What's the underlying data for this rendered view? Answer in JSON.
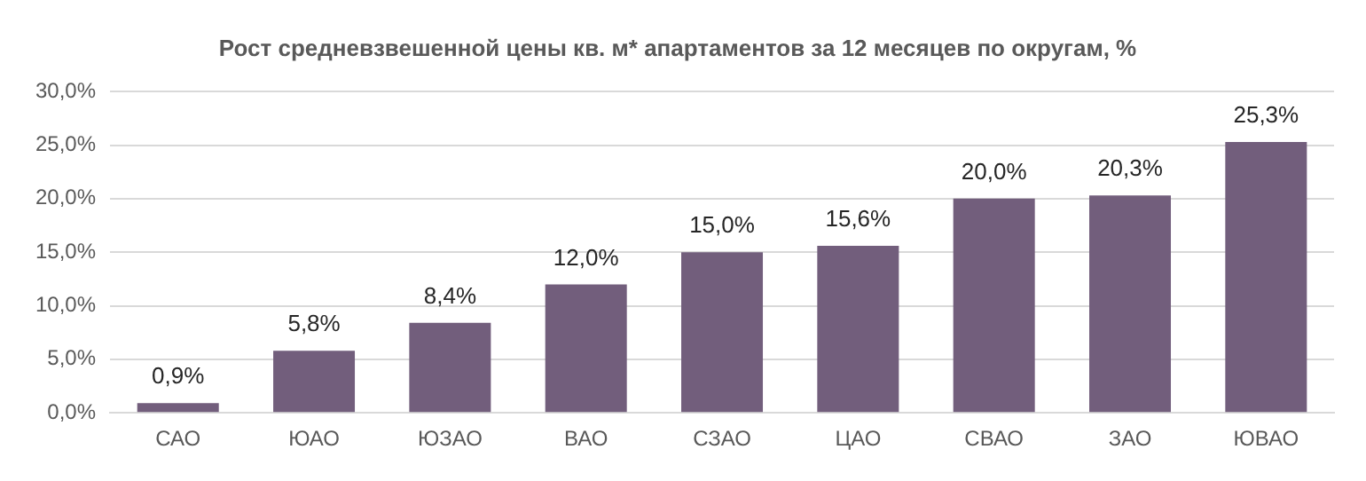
{
  "chart_data": {
    "type": "bar",
    "title": "Рост средневзвешенной цены кв. м* апартаментов за 12 месяцев по округам, %",
    "categories": [
      "САО",
      "ЮАО",
      "ЮЗАО",
      "ВАО",
      "СЗАО",
      "ЦАО",
      "СВАО",
      "ЗАО",
      "ЮВАО"
    ],
    "values": [
      0.9,
      5.8,
      8.4,
      12.0,
      15.0,
      15.6,
      20.0,
      20.3,
      25.3
    ],
    "value_labels": [
      "0,9%",
      "5,8%",
      "8,4%",
      "12,0%",
      "15,0%",
      "15,6%",
      "20,0%",
      "20,3%",
      "25,3%"
    ],
    "color": "#725e7c",
    "ylim": [
      0,
      30
    ],
    "yticks": [
      {
        "value": 0,
        "label": "0,0%"
      },
      {
        "value": 5,
        "label": "5,0%"
      },
      {
        "value": 10,
        "label": "10,0%"
      },
      {
        "value": 15,
        "label": "15,0%"
      },
      {
        "value": 20,
        "label": "20,0%"
      },
      {
        "value": 25,
        "label": "25,0%"
      },
      {
        "value": 30,
        "label": "30,0%"
      }
    ],
    "grid": "y",
    "legend": false
  }
}
